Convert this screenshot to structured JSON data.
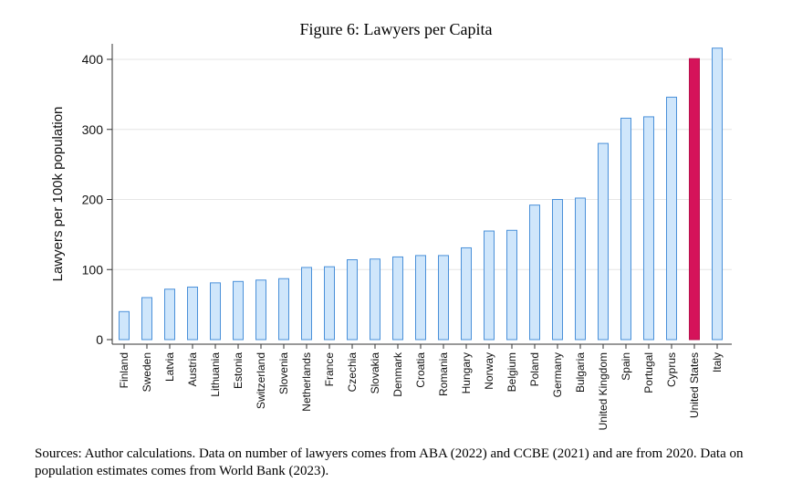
{
  "chart_data": {
    "type": "bar",
    "title": "Figure 6: Lawyers per Capita",
    "ylabel": "Lawyers per 100k population",
    "xlabel": "",
    "ylim": [
      0,
      420
    ],
    "yticks": [
      0,
      100,
      200,
      300,
      400
    ],
    "grid": true,
    "categories": [
      "Finland",
      "Sweden",
      "Latvia",
      "Austria",
      "Lithuania",
      "Estonia",
      "Switzerland",
      "Slovenia",
      "Netherlands",
      "France",
      "Czechia",
      "Slovakia",
      "Denmark",
      "Croatia",
      "Romania",
      "Hungary",
      "Norway",
      "Belgium",
      "Poland",
      "Germany",
      "Bulgaria",
      "United Kingdom",
      "Spain",
      "Portugal",
      "Cyprus",
      "United States",
      "Italy"
    ],
    "values": [
      40,
      60,
      72,
      75,
      81,
      83,
      85,
      87,
      103,
      104,
      114,
      115,
      118,
      120,
      120,
      131,
      155,
      156,
      192,
      200,
      202,
      280,
      316,
      318,
      346,
      401,
      416
    ],
    "highlight": "United States",
    "colors": {
      "bar_fill": "#cfe6fb",
      "bar_stroke": "#4a90d9",
      "highlight_fill": "#d5135a",
      "highlight_stroke": "#b8104c",
      "grid": "#e6e6e6",
      "axis": "#333333"
    }
  },
  "sources": "Sources: Author calculations. Data on number of lawyers comes from ABA (2022) and CCBE (2021) and are from 2020. Data on population estimates comes from World Bank (2023)."
}
